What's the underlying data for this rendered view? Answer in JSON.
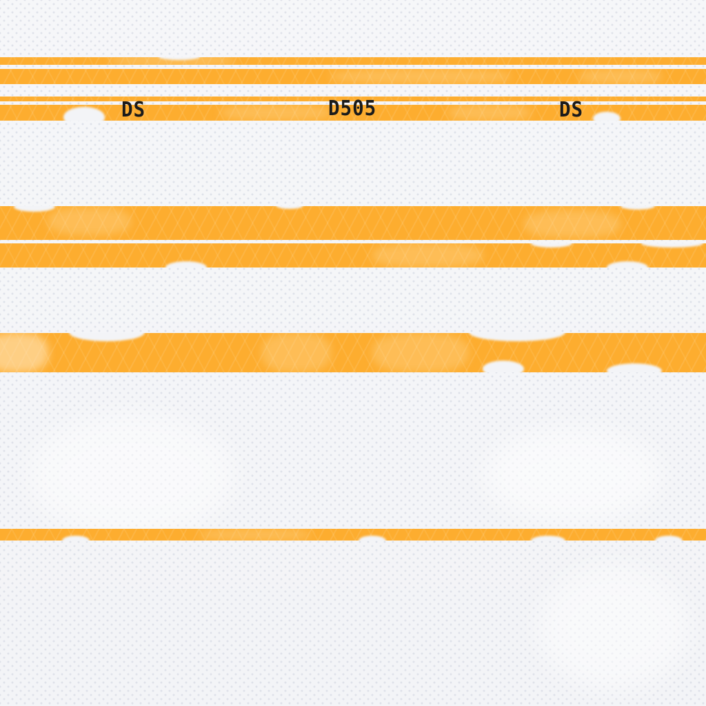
{
  "texture": {
    "base_color": "#f3f4f7",
    "stripe_color": "#fdad2f",
    "text_color": "#1b1b1b"
  },
  "markings": {
    "left_code": "DS",
    "center_code": "D505",
    "right_code": "DS"
  }
}
